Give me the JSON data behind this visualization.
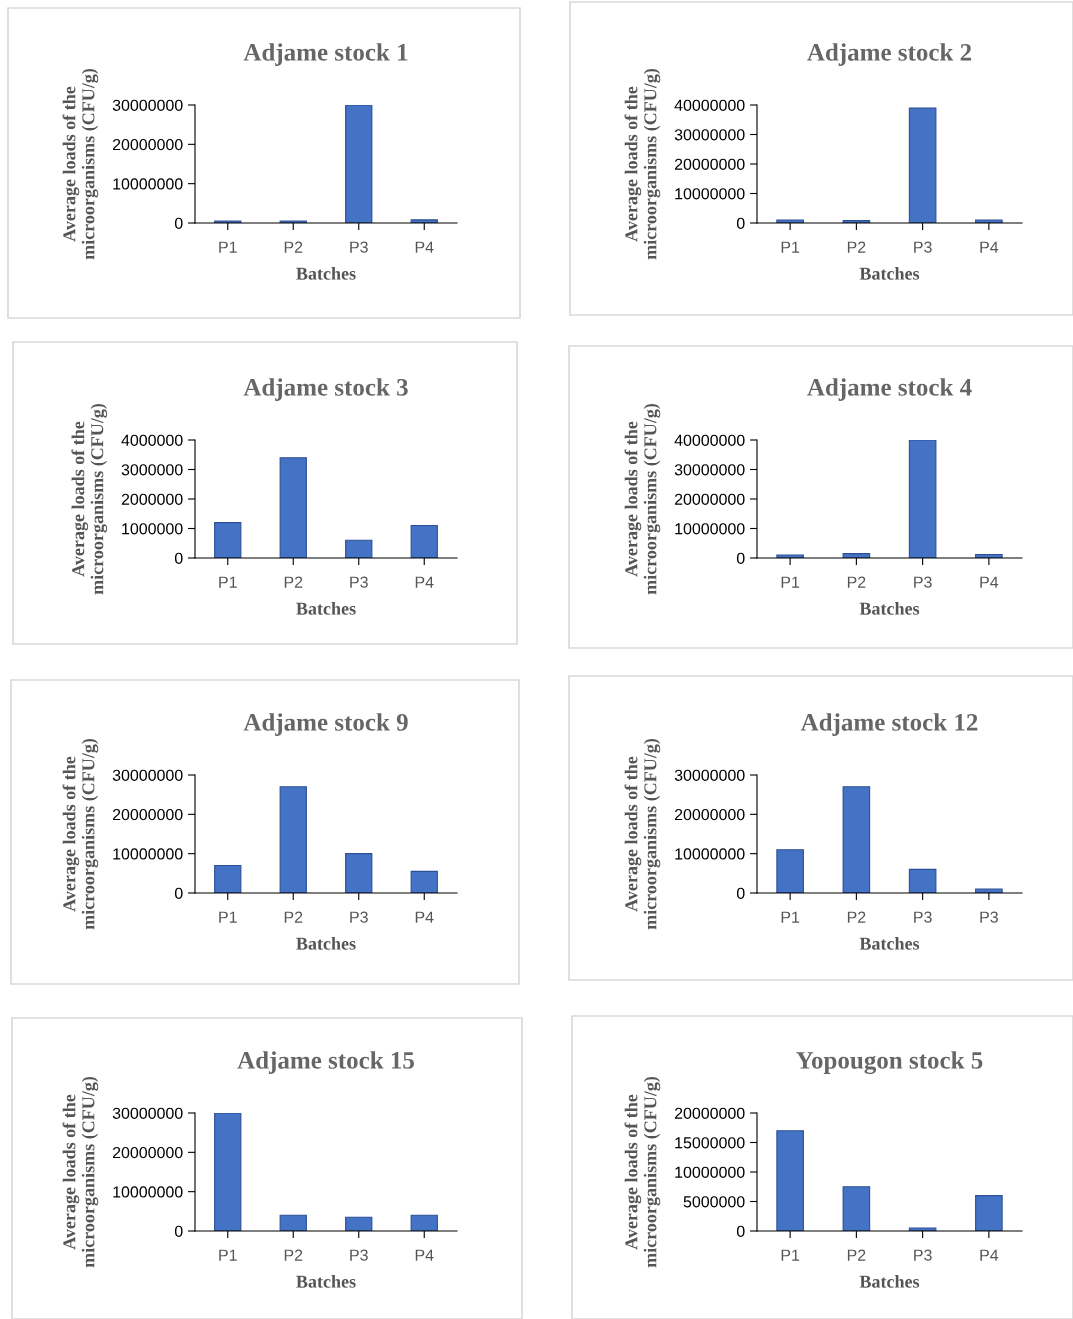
{
  "chart_data": [
    {
      "type": "bar",
      "title": "Adjame stock 1",
      "xlabel": "Batches",
      "ylabel": "Average loads of the\nmicroorganisms (CFU/g)",
      "categories": [
        "P1",
        "P2",
        "P3",
        "P4"
      ],
      "values": [
        500000,
        500000,
        30000000,
        800000
      ],
      "color": "#4472c4",
      "ylim": [
        0,
        30000000
      ],
      "yticks": [
        0,
        10000000,
        20000000,
        30000000
      ],
      "grid": false
    },
    {
      "type": "bar",
      "title": "Adjame stock 2",
      "xlabel": "Batches",
      "ylabel": "Average loads of the\nmicroorganisms (CFU/g)",
      "categories": [
        "P1",
        "P2",
        "P3",
        "P4"
      ],
      "values": [
        1000000,
        800000,
        39000000,
        1000000
      ],
      "color": "#4472c4",
      "ylim": [
        0,
        40000000
      ],
      "yticks": [
        0,
        10000000,
        20000000,
        30000000,
        40000000
      ],
      "grid": false
    },
    {
      "type": "bar",
      "title": "Adjame stock 3",
      "xlabel": "Batches",
      "ylabel": "Average loads of the\nmicroorganisms (CFU/g)",
      "categories": [
        "P1",
        "P2",
        "P3",
        "P4"
      ],
      "values": [
        1200000,
        3400000,
        600000,
        1100000
      ],
      "color": "#4472c4",
      "ylim": [
        0,
        4000000
      ],
      "yticks": [
        0,
        1000000,
        2000000,
        3000000,
        4000000
      ],
      "grid": false
    },
    {
      "type": "bar",
      "title": "Adjame stock 4",
      "xlabel": "Batches",
      "ylabel": "Average loads of the\nmicroorganisms (CFU/g)",
      "categories": [
        "P1",
        "P2",
        "P3",
        "P4"
      ],
      "values": [
        1000000,
        1500000,
        40000000,
        1200000
      ],
      "color": "#4472c4",
      "ylim": [
        0,
        40000000
      ],
      "yticks": [
        0,
        10000000,
        20000000,
        30000000,
        40000000
      ],
      "grid": false
    },
    {
      "type": "bar",
      "title": "Adjame stock 9",
      "xlabel": "Batches",
      "ylabel": "Average loads of the\nmicroorganisms (CFU/g)",
      "categories": [
        "P1",
        "P2",
        "P3",
        "P4"
      ],
      "values": [
        7000000,
        27000000,
        10000000,
        5500000
      ],
      "color": "#4472c4",
      "ylim": [
        0,
        30000000
      ],
      "yticks": [
        0,
        10000000,
        20000000,
        30000000
      ],
      "grid": false
    },
    {
      "type": "bar",
      "title": "Adjame stock 12",
      "xlabel": "Batches",
      "ylabel": "Average loads of the\nmicroorganisms (CFU/g)",
      "categories": [
        "P1",
        "P2",
        "P3",
        "P3"
      ],
      "values": [
        11000000,
        27000000,
        6000000,
        1000000
      ],
      "color": "#4472c4",
      "ylim": [
        0,
        30000000
      ],
      "yticks": [
        0,
        10000000,
        20000000,
        30000000
      ],
      "grid": false
    },
    {
      "type": "bar",
      "title": "Adjame stock 15",
      "xlabel": "Batches",
      "ylabel": "Average loads of the\nmicroorganisms (CFU/g)",
      "categories": [
        "P1",
        "P2",
        "P3",
        "P4"
      ],
      "values": [
        30000000,
        4000000,
        3500000,
        4000000
      ],
      "color": "#4472c4",
      "ylim": [
        0,
        30000000
      ],
      "yticks": [
        0,
        10000000,
        20000000,
        30000000
      ],
      "grid": false
    },
    {
      "type": "bar",
      "title": "Yopougon stock 5",
      "xlabel": "Batches",
      "ylabel": "Average loads of the\nmicroorganisms (CFU/g)",
      "categories": [
        "P1",
        "P2",
        "P3",
        "P4"
      ],
      "values": [
        17000000,
        7500000,
        500000,
        6000000
      ],
      "color": "#4472c4",
      "ylim": [
        0,
        20000000
      ],
      "yticks": [
        0,
        5000000,
        10000000,
        15000000,
        20000000
      ],
      "grid": false
    }
  ]
}
